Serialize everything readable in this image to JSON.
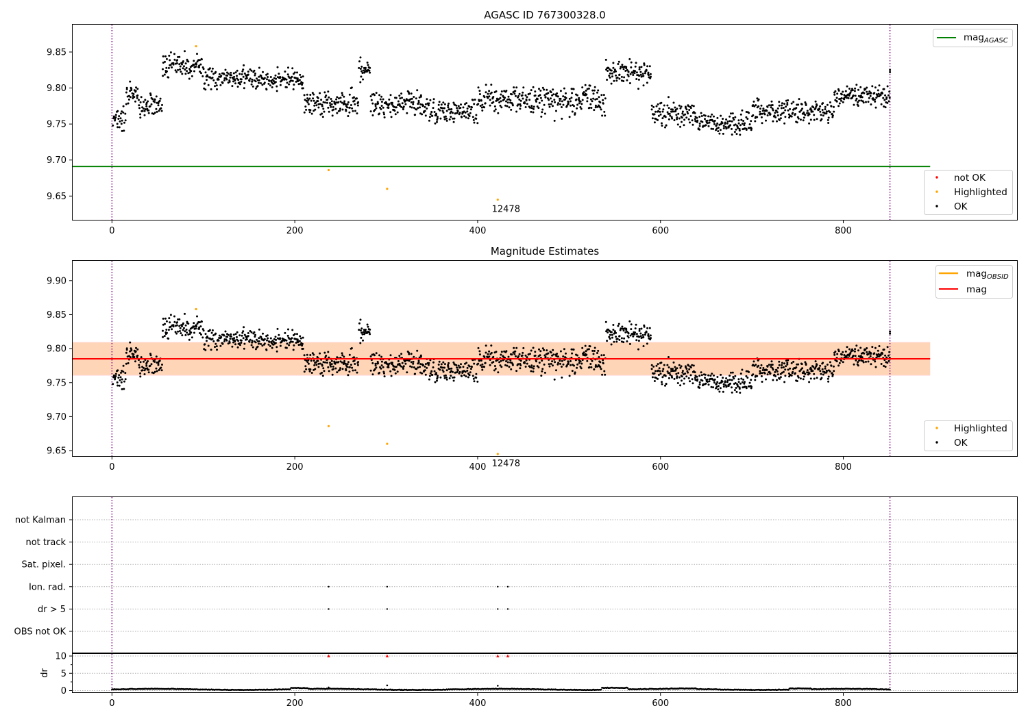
{
  "chart_data": [
    {
      "type": "scatter",
      "title": "AGASC ID 767300328.0",
      "xlim": [
        -43,
        990
      ],
      "ylim": [
        9.617,
        9.888
      ],
      "xticks": [
        0,
        200,
        400,
        600,
        800
      ],
      "yticks": [
        9.65,
        9.7,
        9.75,
        9.8,
        9.85
      ],
      "mag_agasc": 9.691,
      "mag_agasc_x_range": [
        -43,
        895
      ],
      "vlines": [
        0,
        851
      ],
      "series_legend": [
        {
          "name": "not OK",
          "color": "#ff0000"
        },
        {
          "name": "Highlighted",
          "color": "#ffa500"
        },
        {
          "name": "OK",
          "color": "#000000"
        }
      ],
      "line_legend": [
        {
          "name": "mag",
          "sub": "AGASC",
          "color": "#008000"
        }
      ],
      "highlighted_points": [
        {
          "x": 92,
          "y": 9.858
        },
        {
          "x": 237,
          "y": 9.686
        },
        {
          "x": 301,
          "y": 9.66
        },
        {
          "x": 422,
          "y": 9.645
        }
      ],
      "annotation": {
        "text": "12478",
        "x": 425,
        "y": 9.645
      }
    },
    {
      "type": "scatter",
      "title": "Magnitude Estimates",
      "xlim": [
        -43,
        990
      ],
      "ylim": [
        9.642,
        9.929
      ],
      "xticks": [
        0,
        200,
        400,
        600,
        800
      ],
      "yticks": [
        9.65,
        9.7,
        9.75,
        9.8,
        9.85,
        9.9
      ],
      "mag_obsid": 9.785,
      "mag": 9.785,
      "mag_band_outer": [
        9.76,
        9.81
      ],
      "mag_band_inner": [
        9.761,
        9.809
      ],
      "band_x_range": [
        -43,
        895
      ],
      "vlines": [
        0,
        851
      ],
      "series_legend": [
        {
          "name": "Highlighted",
          "color": "#ffa500"
        },
        {
          "name": "OK",
          "color": "#000000"
        }
      ],
      "line_legend": [
        {
          "name": "mag",
          "sub": "OBSID",
          "color": "#ffa500"
        },
        {
          "name": "mag",
          "sub": "",
          "color": "#ff0000"
        }
      ],
      "highlighted_points": [
        {
          "x": 92,
          "y": 9.858
        },
        {
          "x": 237,
          "y": 9.686
        },
        {
          "x": 301,
          "y": 9.66
        },
        {
          "x": 422,
          "y": 9.645
        }
      ],
      "annotation": {
        "text": "12478",
        "x": 425,
        "y": 9.645
      }
    },
    {
      "type": "scatter",
      "title": "",
      "xlim": [
        -43,
        990
      ],
      "categories": [
        "not Kalman",
        "not track",
        "Sat. pixel.",
        "Ion. rad.",
        "dr > 5",
        "OBS not OK"
      ],
      "flag_points": [
        {
          "category": "Ion. rad.",
          "x": [
            237,
            301,
            422,
            433
          ]
        },
        {
          "category": "dr > 5",
          "x": [
            237,
            301,
            422,
            433
          ]
        }
      ],
      "vlines": [
        0,
        851
      ]
    },
    {
      "type": "scatter",
      "title": "",
      "ylabel": "dr",
      "xlim": [
        -43,
        990
      ],
      "ylim": [
        -0.5,
        10.6
      ],
      "xticks": [
        0,
        200,
        400,
        600,
        800
      ],
      "yticks": [
        0,
        5,
        10
      ],
      "clipped_points": {
        "y": 10,
        "x": [
          237,
          301,
          422,
          433
        ],
        "color": "#ff0000"
      },
      "spikes": [
        {
          "x": 237,
          "y": 0.9
        },
        {
          "x": 301,
          "y": 1.5
        },
        {
          "x": 422,
          "y": 1.4
        }
      ],
      "vlines": [
        0,
        851
      ]
    }
  ]
}
